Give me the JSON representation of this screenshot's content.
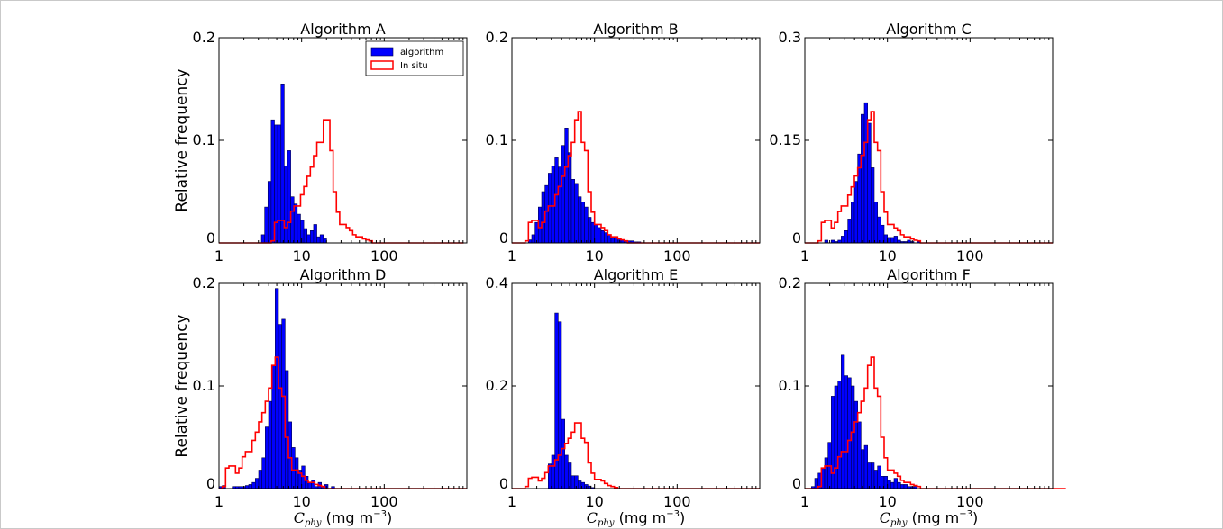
{
  "chart_data": [
    {
      "type": "histogram",
      "title": "Algorithm A",
      "ylabel": "Relative frequency",
      "xlabel": "",
      "xscale": "log",
      "xlim": [
        1,
        1000
      ],
      "ylim": [
        0,
        0.2
      ],
      "yticks": [
        "0",
        "0.1",
        "0.2"
      ],
      "xticks": [
        "1",
        "10",
        "100"
      ],
      "legend": {
        "position": "top-right",
        "entries": [
          "algorithm",
          "In situ"
        ]
      },
      "series": [
        {
          "name": "algorithm",
          "style": "filled",
          "color": "#0000ff",
          "values": [
            0,
            0,
            0,
            0,
            0,
            0,
            0,
            0,
            0,
            0,
            0,
            0,
            0,
            0.008,
            0.035,
            0.06,
            0.12,
            0.115,
            0.115,
            0.155,
            0.075,
            0.09,
            0.045,
            0.038,
            0.028,
            0.022,
            0.014,
            0.008,
            0.012,
            0.018,
            0.006,
            0.008,
            0.004,
            0,
            0,
            0,
            0,
            0,
            0,
            0,
            0,
            0,
            0,
            0,
            0,
            0,
            0,
            0,
            0,
            0,
            0,
            0,
            0,
            0,
            0,
            0,
            0,
            0,
            0,
            0,
            0,
            0,
            0,
            0,
            0,
            0,
            0,
            0,
            0,
            0,
            0,
            0,
            0,
            0,
            0,
            0
          ]
        },
        {
          "name": "In situ",
          "style": "step",
          "color": "#ff0000",
          "values": [
            0,
            0,
            0,
            0,
            0,
            0,
            0,
            0,
            0,
            0,
            0,
            0,
            0,
            0,
            0,
            0,
            0.002,
            0.02,
            0.022,
            0.022,
            0.015,
            0.02,
            0.031,
            0.036,
            0.036,
            0.047,
            0.055,
            0.065,
            0.074,
            0.085,
            0.098,
            0.098,
            0.12,
            0.12,
            0.09,
            0.05,
            0.03,
            0.018,
            0.018,
            0.015,
            0.012,
            0.008,
            0.006,
            0.006,
            0.004,
            0.003,
            0.002,
            0,
            0,
            0,
            0,
            0,
            0,
            0,
            0,
            0,
            0,
            0,
            0,
            0,
            0,
            0,
            0,
            0,
            0,
            0,
            0,
            0,
            0,
            0,
            0,
            0,
            0,
            0,
            0
          ]
        }
      ]
    },
    {
      "type": "histogram",
      "title": "Algorithm B",
      "ylabel": "",
      "xlabel": "",
      "xscale": "log",
      "xlim": [
        1,
        1000
      ],
      "ylim": [
        0,
        0.2
      ],
      "yticks": [
        "0",
        "0.1",
        "0.2"
      ],
      "xticks": [
        "1",
        "10",
        "100"
      ],
      "series": [
        {
          "name": "algorithm",
          "style": "filled",
          "color": "#0000ff",
          "values": [
            0,
            0,
            0,
            0,
            0,
            0.003,
            0.008,
            0.02,
            0.035,
            0.05,
            0.056,
            0.068,
            0.075,
            0.083,
            0.074,
            0.095,
            0.112,
            0.088,
            0.062,
            0.058,
            0.045,
            0.04,
            0.035,
            0.025,
            0.02,
            0.018,
            0.015,
            0.012,
            0.01,
            0.008,
            0.006,
            0.005,
            0.004,
            0.003,
            0.002,
            0.002,
            0.002,
            0.001,
            0.001,
            0,
            0,
            0,
            0,
            0,
            0,
            0,
            0,
            0,
            0,
            0,
            0,
            0,
            0,
            0,
            0,
            0,
            0,
            0,
            0,
            0,
            0,
            0,
            0,
            0,
            0,
            0,
            0,
            0,
            0,
            0,
            0,
            0,
            0,
            0,
            0
          ]
        },
        {
          "name": "In situ",
          "style": "step",
          "color": "#ff0000",
          "values": [
            0,
            0,
            0,
            0,
            0.002,
            0.02,
            0.022,
            0.022,
            0.015,
            0.02,
            0.031,
            0.036,
            0.036,
            0.047,
            0.055,
            0.065,
            0.074,
            0.085,
            0.098,
            0.12,
            0.128,
            0.098,
            0.09,
            0.05,
            0.03,
            0.018,
            0.018,
            0.015,
            0.012,
            0.008,
            0.006,
            0.006,
            0.004,
            0.003,
            0.002,
            0,
            0,
            0,
            0,
            0,
            0,
            0,
            0,
            0,
            0,
            0,
            0,
            0,
            0,
            0,
            0,
            0,
            0,
            0,
            0,
            0,
            0,
            0,
            0,
            0,
            0,
            0,
            0,
            0,
            0,
            0,
            0,
            0,
            0,
            0,
            0,
            0,
            0,
            0,
            0
          ]
        }
      ]
    },
    {
      "type": "histogram",
      "title": "Algorithm C",
      "ylabel": "",
      "xlabel": "",
      "xscale": "log",
      "xlim": [
        1,
        1000
      ],
      "ylim": [
        0,
        0.3
      ],
      "yticks": [
        "0",
        "0.15",
        "0.3"
      ],
      "xticks": [
        "1",
        "10",
        "100"
      ],
      "series": [
        {
          "name": "algorithm",
          "style": "filled",
          "color": "#0000ff",
          "values": [
            0,
            0,
            0,
            0,
            0,
            0,
            0.004,
            0,
            0.004,
            0.002,
            0.004,
            0.01,
            0.018,
            0.035,
            0.06,
            0.09,
            0.13,
            0.188,
            0.205,
            0.175,
            0.11,
            0.06,
            0.038,
            0.026,
            0.012,
            0.008,
            0.008,
            0.01,
            0.004,
            0.002,
            0.002,
            0.004,
            0.002,
            0,
            0.002,
            0,
            0,
            0,
            0,
            0,
            0,
            0,
            0,
            0,
            0,
            0,
            0,
            0,
            0,
            0,
            0,
            0,
            0,
            0,
            0,
            0,
            0,
            0,
            0,
            0,
            0,
            0,
            0,
            0,
            0,
            0,
            0,
            0,
            0,
            0,
            0,
            0,
            0,
            0,
            0
          ]
        },
        {
          "name": "In situ",
          "style": "step",
          "color": "#ff0000",
          "values": [
            0,
            0,
            0,
            0,
            0.003,
            0.03,
            0.033,
            0.033,
            0.022,
            0.03,
            0.046,
            0.054,
            0.054,
            0.07,
            0.082,
            0.098,
            0.11,
            0.128,
            0.147,
            0.18,
            0.192,
            0.147,
            0.135,
            0.075,
            0.045,
            0.027,
            0.027,
            0.022,
            0.018,
            0.012,
            0.009,
            0.009,
            0.006,
            0.004,
            0.003,
            0,
            0,
            0,
            0,
            0,
            0,
            0,
            0,
            0,
            0,
            0,
            0,
            0,
            0,
            0,
            0,
            0,
            0,
            0,
            0,
            0,
            0,
            0,
            0,
            0,
            0,
            0,
            0,
            0,
            0,
            0,
            0,
            0,
            0,
            0,
            0,
            0,
            0,
            0,
            0
          ]
        }
      ]
    },
    {
      "type": "histogram",
      "title": "Algorithm D",
      "ylabel": "Relative frequency",
      "xlabel": "C_phy (mg m^-3)",
      "xscale": "log",
      "xlim": [
        1,
        1000
      ],
      "ylim": [
        0,
        0.2
      ],
      "yticks": [
        "0",
        "0.1",
        "0.2"
      ],
      "xticks": [
        "1",
        "10",
        "100"
      ],
      "series": [
        {
          "name": "algorithm",
          "style": "filled",
          "color": "#0000ff",
          "values": [
            0.002,
            0.003,
            0,
            0,
            0.002,
            0.002,
            0.002,
            0.002,
            0.003,
            0.004,
            0.006,
            0.01,
            0.018,
            0.03,
            0.06,
            0.085,
            0.12,
            0.195,
            0.16,
            0.165,
            0.115,
            0.065,
            0.04,
            0.03,
            0.018,
            0.022,
            0.012,
            0.006,
            0.008,
            0.002,
            0.006,
            0.002,
            0.004,
            0,
            0.002,
            0,
            0,
            0,
            0,
            0,
            0,
            0,
            0,
            0,
            0,
            0,
            0,
            0,
            0,
            0,
            0,
            0,
            0,
            0,
            0,
            0,
            0,
            0,
            0,
            0,
            0,
            0,
            0,
            0,
            0,
            0,
            0,
            0,
            0,
            0,
            0,
            0,
            0,
            0,
            0
          ]
        },
        {
          "name": "In situ",
          "style": "step",
          "color": "#ff0000",
          "values": [
            0,
            0.002,
            0.02,
            0.022,
            0.022,
            0.015,
            0.02,
            0.031,
            0.036,
            0.036,
            0.047,
            0.055,
            0.065,
            0.074,
            0.085,
            0.098,
            0.12,
            0.128,
            0.098,
            0.09,
            0.05,
            0.03,
            0.018,
            0.018,
            0.015,
            0.012,
            0.008,
            0.006,
            0.006,
            0.004,
            0.003,
            0.002,
            0,
            0,
            0,
            0,
            0,
            0,
            0,
            0,
            0,
            0,
            0,
            0,
            0,
            0,
            0,
            0,
            0,
            0,
            0,
            0,
            0,
            0,
            0,
            0,
            0,
            0,
            0,
            0,
            0,
            0,
            0,
            0,
            0,
            0,
            0,
            0,
            0,
            0,
            0,
            0,
            0,
            0,
            0
          ]
        }
      ]
    },
    {
      "type": "histogram",
      "title": "Algorithm E",
      "ylabel": "",
      "xlabel": "C_phy (mg m^-3)",
      "xscale": "log",
      "xlim": [
        1,
        1000
      ],
      "ylim": [
        0,
        0.4
      ],
      "yticks": [
        "0",
        "0.2",
        "0.4"
      ],
      "xticks": [
        "1",
        "10",
        "100"
      ],
      "series": [
        {
          "name": "algorithm",
          "style": "filled",
          "color": "#0000ff",
          "values": [
            0,
            0,
            0,
            0,
            0,
            0,
            0,
            0,
            0,
            0,
            0,
            0.048,
            0.065,
            0.342,
            0.325,
            0.135,
            0.065,
            0.05,
            0.025,
            0.025,
            0.015,
            0.012,
            0.008,
            0.005,
            0.002,
            0,
            0,
            0,
            0,
            0,
            0,
            0,
            0,
            0,
            0,
            0,
            0,
            0,
            0,
            0,
            0,
            0,
            0,
            0,
            0,
            0,
            0,
            0,
            0,
            0,
            0,
            0,
            0,
            0,
            0,
            0,
            0,
            0,
            0,
            0,
            0,
            0,
            0,
            0,
            0,
            0,
            0,
            0,
            0,
            0,
            0,
            0,
            0,
            0,
            0
          ]
        },
        {
          "name": "In situ",
          "style": "step",
          "color": "#ff0000",
          "values": [
            0,
            0,
            0,
            0,
            0.004,
            0.02,
            0.022,
            0.022,
            0.015,
            0.02,
            0.031,
            0.044,
            0.044,
            0.056,
            0.065,
            0.078,
            0.088,
            0.098,
            0.11,
            0.128,
            0.128,
            0.098,
            0.09,
            0.05,
            0.03,
            0.018,
            0.018,
            0.015,
            0.01,
            0.006,
            0.004,
            0.002,
            0,
            0,
            0,
            0,
            0,
            0,
            0,
            0,
            0,
            0,
            0,
            0,
            0,
            0,
            0,
            0,
            0,
            0,
            0,
            0,
            0,
            0,
            0,
            0,
            0,
            0,
            0,
            0,
            0,
            0,
            0,
            0,
            0,
            0,
            0,
            0,
            0,
            0,
            0,
            0,
            0,
            0,
            0
          ]
        }
      ]
    },
    {
      "type": "histogram",
      "title": "Algorithm F",
      "ylabel": "",
      "xlabel": "C_phy (mg m^-3)",
      "xscale": "log",
      "xlim": [
        1,
        1000
      ],
      "ylim": [
        0,
        0.2
      ],
      "yticks": [
        "0",
        "0.1",
        "0.2"
      ],
      "xticks": [
        "1",
        "10",
        "100"
      ],
      "series": [
        {
          "name": "algorithm",
          "style": "filled",
          "color": "#0000ff",
          "values": [
            0,
            0,
            0.002,
            0.01,
            0.015,
            0.02,
            0.03,
            0.045,
            0.09,
            0.1,
            0.105,
            0.13,
            0.11,
            0.108,
            0.1,
            0.085,
            0.065,
            0.038,
            0.042,
            0.025,
            0.025,
            0.018,
            0.022,
            0.012,
            0.012,
            0.008,
            0.006,
            0.01,
            0.006,
            0.004,
            0.004,
            0.002,
            0.002,
            0.002,
            0,
            0,
            0,
            0,
            0,
            0,
            0,
            0,
            0,
            0,
            0,
            0,
            0,
            0,
            0,
            0,
            0,
            0,
            0,
            0,
            0,
            0,
            0,
            0,
            0,
            0,
            0,
            0,
            0,
            0,
            0,
            0,
            0,
            0,
            0,
            0,
            0,
            0,
            0,
            0,
            0
          ]
        },
        {
          "name": "In situ",
          "style": "step",
          "color": "#ff0000",
          "values": [
            0,
            0,
            0,
            0,
            0.002,
            0.02,
            0.022,
            0.022,
            0.015,
            0.02,
            0.031,
            0.036,
            0.036,
            0.047,
            0.055,
            0.065,
            0.074,
            0.085,
            0.098,
            0.12,
            0.128,
            0.098,
            0.09,
            0.05,
            0.03,
            0.018,
            0.018,
            0.015,
            0.012,
            0.008,
            0.006,
            0.006,
            0.004,
            0.003,
            0.002,
            0,
            0,
            0,
            0,
            0,
            0,
            0,
            0,
            0,
            0,
            0,
            0,
            0,
            0,
            0,
            0,
            0,
            0,
            0,
            0,
            0,
            0,
            0,
            0,
            0,
            0,
            0,
            0,
            0,
            0,
            0,
            0,
            0,
            0,
            0,
            0,
            0,
            0,
            0,
            0,
            0,
            0,
            0,
            0
          ]
        }
      ]
    }
  ]
}
